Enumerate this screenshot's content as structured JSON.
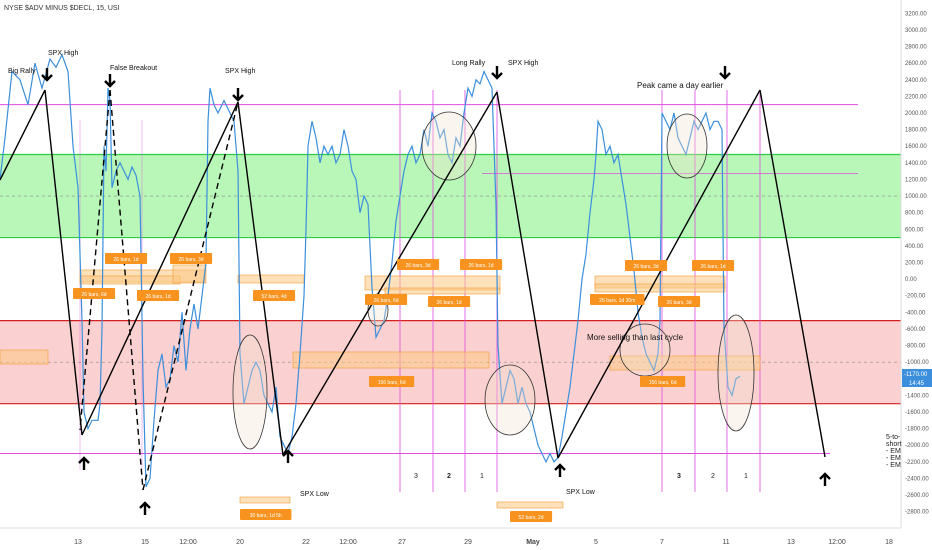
{
  "header": {
    "title": "NYSE $ADV MINUS $DECL, 15, USI"
  },
  "chart_data": {
    "type": "line",
    "title": "NYSE $ADV MINUS $DECL, 15, USI",
    "ylim": [
      -2900,
      3300
    ],
    "y_ticks": [
      "3200.00",
      "3000.00",
      "2800.00",
      "2600.00",
      "2400.00",
      "2200.00",
      "2000.00",
      "1800.00",
      "1600.00",
      "1400.00",
      "1200.00",
      "1000.00",
      "800.00",
      "600.00",
      "400.00",
      "200.00",
      "0.00",
      "-200.00",
      "-400.00",
      "-600.00",
      "-800.00",
      "-1000.00",
      "-1200.00",
      "-1400.00",
      "-1600.00",
      "-1800.00",
      "-2000.00",
      "-2200.00",
      "-2400.00",
      "-2600.00",
      "-2800.00"
    ],
    "x_ticks": [
      "13",
      "15",
      "12:00",
      "20",
      "22",
      "12:00",
      "27",
      "29",
      "May",
      "5",
      "7",
      "11",
      "13",
      "12:00",
      "18"
    ],
    "last_value": "-1170.00",
    "countdown": "14:45",
    "zones": [
      {
        "name": "green",
        "from": 500,
        "to": 1500,
        "color": "#7df07d"
      },
      {
        "name": "red",
        "from": -1500,
        "to": -500,
        "color": "#f7a9a9"
      }
    ],
    "series": [
      {
        "color": "#3b8fdc",
        "points": [
          [
            0,
            1200
          ],
          [
            5,
            1700
          ],
          [
            12,
            2500
          ],
          [
            20,
            2400
          ],
          [
            28,
            2100
          ],
          [
            35,
            2600
          ],
          [
            42,
            2300
          ],
          [
            50,
            2650
          ],
          [
            56,
            2550
          ],
          [
            62,
            2700
          ],
          [
            68,
            2500
          ],
          [
            73,
            1600
          ],
          [
            78,
            1100
          ],
          [
            82,
            -500
          ],
          [
            84,
            -1600
          ],
          [
            88,
            -1800
          ],
          [
            92,
            -1700
          ],
          [
            98,
            -1700
          ],
          [
            100,
            -1500
          ],
          [
            102,
            -600
          ],
          [
            104,
            1600
          ],
          [
            106,
            1300
          ],
          [
            108,
            2300
          ],
          [
            110,
            2150
          ],
          [
            112,
            1100
          ],
          [
            116,
            1300
          ],
          [
            120,
            1400
          ],
          [
            124,
            1300
          ],
          [
            128,
            1200
          ],
          [
            132,
            1350
          ],
          [
            136,
            1250
          ],
          [
            140,
            1000
          ],
          [
            143,
            -1200
          ],
          [
            146,
            -2500
          ],
          [
            150,
            -2400
          ],
          [
            154,
            -1700
          ],
          [
            158,
            -1100
          ],
          [
            162,
            -900
          ],
          [
            166,
            -1300
          ],
          [
            170,
            -1200
          ],
          [
            174,
            -800
          ],
          [
            178,
            -1000
          ],
          [
            182,
            -400
          ],
          [
            186,
            -1100
          ],
          [
            190,
            -600
          ],
          [
            194,
            -300
          ],
          [
            198,
            -600
          ],
          [
            202,
            -200
          ],
          [
            206,
            200
          ],
          [
            208,
            1900
          ],
          [
            210,
            2300
          ],
          [
            214,
            2100
          ],
          [
            218,
            2000
          ],
          [
            224,
            2150
          ],
          [
            230,
            2000
          ],
          [
            234,
            1900
          ],
          [
            238,
            1300
          ],
          [
            240,
            -900
          ],
          [
            244,
            -1500
          ],
          [
            248,
            -1300
          ],
          [
            252,
            -1100
          ],
          [
            256,
            -1000
          ],
          [
            260,
            -1100
          ],
          [
            264,
            -1400
          ],
          [
            268,
            -1500
          ],
          [
            272,
            -1600
          ],
          [
            276,
            -1300
          ],
          [
            280,
            -1900
          ],
          [
            284,
            -2000
          ],
          [
            288,
            -2100
          ],
          [
            292,
            -1900
          ],
          [
            296,
            -1500
          ],
          [
            300,
            -900
          ],
          [
            304,
            -200
          ],
          [
            306,
            600
          ],
          [
            308,
            1600
          ],
          [
            312,
            1900
          ],
          [
            316,
            1700
          ],
          [
            320,
            1400
          ],
          [
            324,
            1600
          ],
          [
            328,
            1500
          ],
          [
            332,
            1600
          ],
          [
            336,
            1400
          ],
          [
            340,
            1500
          ],
          [
            344,
            1800
          ],
          [
            348,
            1600
          ],
          [
            352,
            1300
          ],
          [
            356,
            1200
          ],
          [
            360,
            800
          ],
          [
            364,
            1000
          ],
          [
            368,
            900
          ],
          [
            370,
            400
          ],
          [
            372,
            -100
          ],
          [
            376,
            -700
          ],
          [
            380,
            -600
          ],
          [
            384,
            -500
          ],
          [
            388,
            -200
          ],
          [
            392,
            200
          ],
          [
            396,
            700
          ],
          [
            400,
            1000
          ],
          [
            404,
            1300
          ],
          [
            408,
            1500
          ],
          [
            412,
            1600
          ],
          [
            416,
            1400
          ],
          [
            420,
            1500
          ],
          [
            424,
            1800
          ],
          [
            428,
            1600
          ],
          [
            432,
            2000
          ],
          [
            436,
            1900
          ],
          [
            440,
            1700
          ],
          [
            444,
            1800
          ],
          [
            448,
            1500
          ],
          [
            452,
            1400
          ],
          [
            456,
            1700
          ],
          [
            460,
            1600
          ],
          [
            464,
            2000
          ],
          [
            468,
            2300
          ],
          [
            472,
            2200
          ],
          [
            476,
            2400
          ],
          [
            480,
            2350
          ],
          [
            484,
            2500
          ],
          [
            488,
            2400
          ],
          [
            492,
            2300
          ],
          [
            496,
            900
          ],
          [
            498,
            -800
          ],
          [
            502,
            -1500
          ],
          [
            506,
            -1300
          ],
          [
            510,
            -1100
          ],
          [
            514,
            -1200
          ],
          [
            518,
            -1500
          ],
          [
            522,
            -1300
          ],
          [
            526,
            -1500
          ],
          [
            530,
            -1600
          ],
          [
            534,
            -1800
          ],
          [
            538,
            -2000
          ],
          [
            542,
            -2100
          ],
          [
            546,
            -2200
          ],
          [
            550,
            -2100
          ],
          [
            554,
            -2200
          ],
          [
            558,
            -2150
          ],
          [
            562,
            -1900
          ],
          [
            566,
            -1600
          ],
          [
            570,
            -1300
          ],
          [
            574,
            -900
          ],
          [
            578,
            -500
          ],
          [
            582,
            0
          ],
          [
            586,
            300
          ],
          [
            590,
            800
          ],
          [
            594,
            1200
          ],
          [
            596,
            1500
          ],
          [
            598,
            1900
          ],
          [
            602,
            1800
          ],
          [
            606,
            1500
          ],
          [
            610,
            1600
          ],
          [
            614,
            1400
          ],
          [
            618,
            1500
          ],
          [
            622,
            1200
          ],
          [
            626,
            900
          ],
          [
            630,
            500
          ],
          [
            634,
            100
          ],
          [
            638,
            -400
          ],
          [
            642,
            -700
          ],
          [
            646,
            -900
          ],
          [
            650,
            -1000
          ],
          [
            654,
            -1100
          ],
          [
            658,
            -900
          ],
          [
            660,
            -500
          ],
          [
            662,
            2000
          ],
          [
            666,
            1900
          ],
          [
            670,
            1800
          ],
          [
            674,
            2000
          ],
          [
            678,
            1700
          ],
          [
            682,
            1600
          ],
          [
            686,
            1500
          ],
          [
            690,
            1700
          ],
          [
            694,
            1900
          ],
          [
            698,
            1800
          ],
          [
            702,
            1900
          ],
          [
            706,
            2000
          ],
          [
            710,
            1800
          ],
          [
            714,
            1900
          ],
          [
            718,
            1900
          ],
          [
            722,
            1800
          ],
          [
            724,
            -600
          ],
          [
            728,
            -1300
          ],
          [
            732,
            -1400
          ],
          [
            736,
            -1200
          ],
          [
            740,
            -1170
          ]
        ]
      }
    ]
  },
  "annotations": {
    "labels": [
      {
        "id": "big-rally",
        "text": "Big Rally"
      },
      {
        "id": "spx-high-1",
        "text": "SPX High"
      },
      {
        "id": "false-breakout",
        "text": "False Breakout"
      },
      {
        "id": "spx-high-2",
        "text": "SPX High"
      },
      {
        "id": "long-rally",
        "text": "Long Rally"
      },
      {
        "id": "spx-high-3",
        "text": "SPX High"
      },
      {
        "id": "peak-earlier",
        "text": "Peak came a day earlier"
      },
      {
        "id": "more-selling",
        "text": "More selling than last cycle"
      },
      {
        "id": "spx-low-1",
        "text": "SPX Low"
      },
      {
        "id": "spx-low-2",
        "text": "SPX Low"
      }
    ],
    "cycle_counts": [
      "3",
      "2",
      "1",
      "3",
      "2",
      "1"
    ],
    "projection_labels": [
      "26 bars, 6d",
      "26 bars, 1d",
      "26 bars, 1d",
      "26 bars, 3d",
      "52 bars, 4d",
      "30 bars, 1d 5h",
      "26 bars, 6d",
      "26 bars, 3d",
      "26 bars, 1d",
      "26 bars, 1d",
      "156 bars, 6d",
      "52 bars, 2d",
      "26 bars, 1d 30m",
      "26 bars, 3d",
      "26 bars, 3d",
      "26 bars, 1d",
      "156 bars, 6d"
    ],
    "side_note": [
      "5-to-",
      "short",
      "- EM",
      "- EM",
      "- EM"
    ]
  }
}
